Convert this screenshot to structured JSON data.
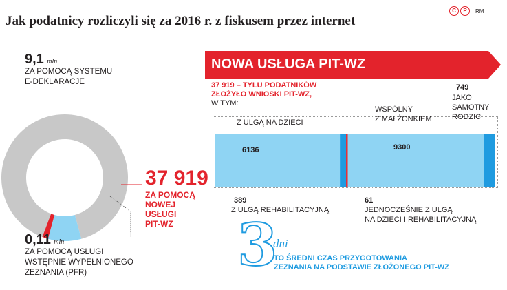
{
  "title": "Jak podatnicy rozliczyli się za 2016 r. z fiskusem przez internet",
  "logo": {
    "circle1": "C",
    "circle2": "P",
    "text": "RM"
  },
  "donut": {
    "edeklaracje": {
      "value": "9,1",
      "unit": "mln",
      "label_line1": "ZA POMOCĄ SYSTEMU",
      "label_line2": "E-DEKLARACJE"
    },
    "pitwz": {
      "value": "37 919",
      "line1": "ZA POMOCĄ",
      "line2": "NOWEJ",
      "line3": "USŁUGI",
      "line4": "PIT-WZ"
    },
    "pfr": {
      "value": "0,11",
      "unit": "mln",
      "line1": "ZA POMOCĄ USŁUGI",
      "line2": "WSTĘPNIE WYPEŁNIONEGO",
      "line3": "ZEZNANIA (PFR)"
    }
  },
  "banner": {
    "text": "NOWA USŁUGA PIT-WZ"
  },
  "intro": {
    "red1": "37 919 – TYLU PODATNIKÓW",
    "red2": "ZŁOŻYŁO WNIOSKI PIT-WZ,",
    "black": "W TYM:"
  },
  "segments": {
    "dzieci": {
      "value": "6136",
      "label": "Z ULGĄ NA DZIECI"
    },
    "rehab": {
      "value": "389",
      "label": "Z ULGĄ REHABILITACYJNĄ"
    },
    "both": {
      "value": "61",
      "line1": "JEDNOCZEŚNIE Z ULGĄ",
      "line2": "NA DZIECI I REHABILITACYJNĄ"
    },
    "malzonek": {
      "value": "9300",
      "line1": "WSPÓLNY",
      "line2": "Z MAŁŻONKIEM"
    },
    "rodzic": {
      "value": "749",
      "line1": "JAKO",
      "line2": "SAMOTNY",
      "line3": "RODZIC"
    }
  },
  "average": {
    "number": "3",
    "unit": "dni",
    "line1": "TO ŚREDNI CZAS PRZYGOTOWANIA",
    "line2": "ZEZNANIA NA PODSTAWIE  ZŁOŻONEGO PIT-WZ"
  },
  "colors": {
    "red": "#e3232c",
    "blue": "#1f9be0",
    "lightblue": "#8fd4f3",
    "grey": "#c8c8c8",
    "dark": "#231f20"
  },
  "chart_data": [
    {
      "type": "pie",
      "subtype": "donut",
      "unit": "mln",
      "slices": [
        {
          "label": "ZA POMOCĄ SYSTEMU E-DEKLARACJE",
          "value": 9.1,
          "color": "#c8c8c8"
        },
        {
          "label": "ZA POMOCĄ USŁUGI WSTĘPNIE WYPEŁNIONEGO ZEZNANIA (PFR)",
          "value": 0.11,
          "color": "#8fd4f3"
        },
        {
          "label": "ZA POMOCĄ NOWEJ USŁUGI PIT-WZ",
          "value": 0.037919,
          "color": "#e3232c"
        }
      ]
    },
    {
      "type": "bar",
      "orientation": "horizontal",
      "stacked": true,
      "total": 37919,
      "segments": [
        {
          "label": "Z ULGĄ NA DZIECI",
          "value": 6136,
          "color": "#8fd4f3"
        },
        {
          "label": "Z ULGĄ REHABILITACYJNĄ",
          "value": 389,
          "color": "#1f9be0"
        },
        {
          "label": "JEDNOCZEŚNIE Z ULGĄ NA DZIECI I REHABILITACYJNĄ",
          "value": 61,
          "color": "#e3232c"
        },
        {
          "label": "WSPÓLNY Z MAŁŻONKIEM",
          "value": 9300,
          "color": "#8fd4f3"
        },
        {
          "label": "JAKO SAMOTNY RODZIC",
          "value": 749,
          "color": "#1f9be0"
        }
      ]
    }
  ]
}
